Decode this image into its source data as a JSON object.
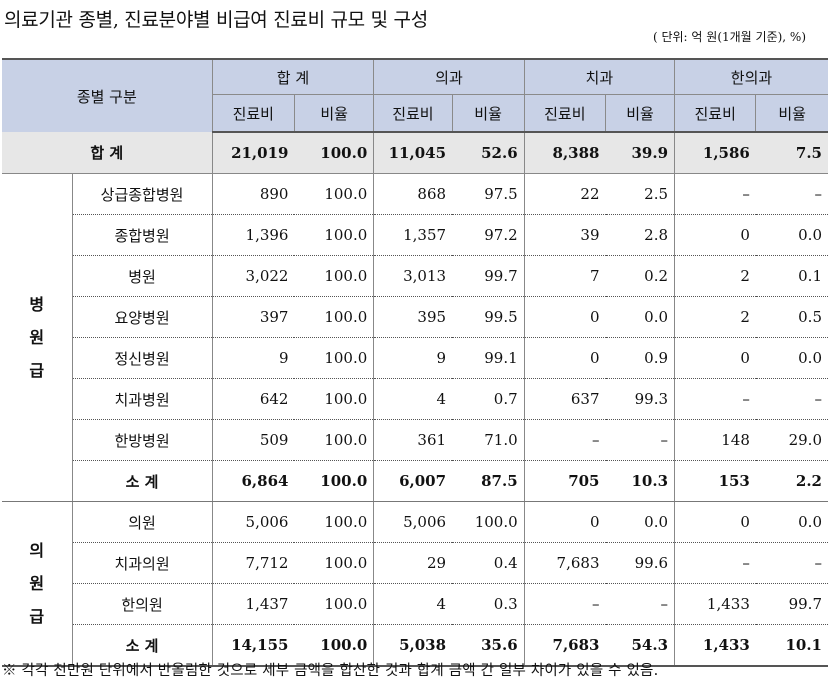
{
  "title": "의료기관 종별, 진료분야별 비급여 진료비 규모 및 구성",
  "unit_note": "( 단위: 억 원(1개월 기준), %)",
  "header": {
    "category": "종별 구분",
    "groups": [
      "합 계",
      "의과",
      "치과",
      "한의과"
    ],
    "sub": [
      "진료비",
      "비율"
    ]
  },
  "total_row": {
    "label": "합 계",
    "values": [
      "21,019",
      "100.0",
      "11,045",
      "52.6",
      "8,388",
      "39.9",
      "1,586",
      "7.5"
    ]
  },
  "hospital_group": {
    "label_chars": [
      "병",
      "원",
      "급"
    ],
    "rows": [
      {
        "label": "상급종합병원",
        "values": [
          "890",
          "100.0",
          "868",
          "97.5",
          "22",
          "2.5",
          "–",
          "–"
        ]
      },
      {
        "label": "종합병원",
        "values": [
          "1,396",
          "100.0",
          "1,357",
          "97.2",
          "39",
          "2.8",
          "0",
          "0.0"
        ]
      },
      {
        "label": "병원",
        "values": [
          "3,022",
          "100.0",
          "3,013",
          "99.7",
          "7",
          "0.2",
          "2",
          "0.1"
        ]
      },
      {
        "label": "요양병원",
        "values": [
          "397",
          "100.0",
          "395",
          "99.5",
          "0",
          "0.0",
          "2",
          "0.5"
        ]
      },
      {
        "label": "정신병원",
        "values": [
          "9",
          "100.0",
          "9",
          "99.1",
          "0",
          "0.9",
          "0",
          "0.0"
        ]
      },
      {
        "label": "치과병원",
        "values": [
          "642",
          "100.0",
          "4",
          "0.7",
          "637",
          "99.3",
          "–",
          "–"
        ]
      },
      {
        "label": "한방병원",
        "values": [
          "509",
          "100.0",
          "361",
          "71.0",
          "–",
          "–",
          "148",
          "29.0"
        ]
      }
    ],
    "subtotal": {
      "label": "소  계",
      "values": [
        "6,864",
        "100.0",
        "6,007",
        "87.5",
        "705",
        "10.3",
        "153",
        "2.2"
      ]
    }
  },
  "clinic_group": {
    "label_chars": [
      "의",
      "원",
      "급"
    ],
    "rows": [
      {
        "label": "의원",
        "values": [
          "5,006",
          "100.0",
          "5,006",
          "100.0",
          "0",
          "0.0",
          "0",
          "0.0"
        ]
      },
      {
        "label": "치과의원",
        "values": [
          "7,712",
          "100.0",
          "29",
          "0.4",
          "7,683",
          "99.6",
          "–",
          "–"
        ]
      },
      {
        "label": "한의원",
        "values": [
          "1,437",
          "100.0",
          "4",
          "0.3",
          "–",
          "–",
          "1,433",
          "99.7"
        ]
      }
    ],
    "subtotal": {
      "label": "소  계",
      "values": [
        "14,155",
        "100.0",
        "5,038",
        "35.6",
        "7,683",
        "54.3",
        "1,433",
        "10.1"
      ]
    }
  },
  "footnote": "※ 각각 천만원 단위에서 반올림한 것으로 세부 금액을 합산한 것과 합계 금액 간 일부 차이가 있을 수 있음."
}
